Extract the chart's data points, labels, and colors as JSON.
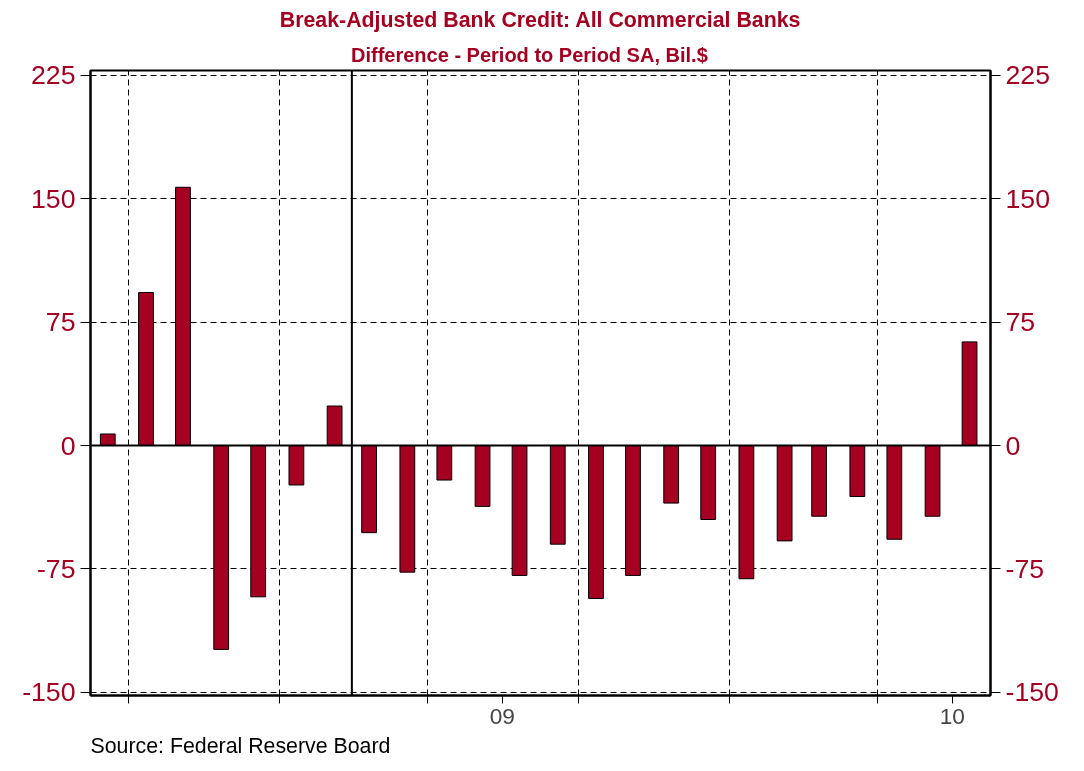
{
  "chart_data": {
    "type": "bar",
    "title": "Break-Adjusted Bank Credit: All Commercial Banks",
    "subtitle": "Difference - Period to Period     SA, Bil.$",
    "x": [
      "2008-08-15",
      "2008-09-15",
      "2008-10-15",
      "2008-11-15",
      "2008-12-15",
      "2009-01-15",
      "2009-02-15",
      "2009-03-15",
      "2009-04-15",
      "2009-05-15",
      "2009-06-15",
      "2009-07-15",
      "2009-08-15",
      "2009-09-15",
      "2009-10-15",
      "2009-11-15",
      "2009-12-15",
      "2010-01-15",
      "2010-02-15",
      "2010-03-15",
      "2010-04-15",
      "2010-05-15",
      "2010-06-15",
      "2010-07-15"
    ],
    "series": [
      {
        "color": "#a50021",
        "values": [
          7,
          93,
          157,
          -124,
          -92,
          -24,
          24,
          -53,
          -77,
          -21,
          -37,
          -79,
          -60,
          -93,
          -79,
          -35,
          -45,
          -81,
          -58,
          -43,
          -31,
          -57,
          -43,
          63
        ]
      }
    ],
    "xlim": [
      "2008-08-01",
      "2010-08-01"
    ],
    "xticks": [
      {
        "value": "2008-09-01",
        "label": null
      },
      {
        "value": "2009-01-01",
        "label": null
      },
      {
        "value": "2009-05-01",
        "label": null
      },
      {
        "value": "2009-07-01",
        "label": "09"
      },
      {
        "value": "2009-09-01",
        "label": null
      },
      {
        "value": "2010-01-01",
        "label": null
      },
      {
        "value": "2010-05-01",
        "label": null
      },
      {
        "value": "2010-07-01",
        "label": "10"
      }
    ],
    "ylim": [
      -152,
      228
    ],
    "yticks": [
      -150,
      -75,
      0,
      75,
      150,
      225
    ],
    "y2lim": [
      -152,
      228
    ],
    "y2ticks": [
      -150,
      -75,
      0,
      75,
      150,
      225
    ],
    "ref_lines": [
      {
        "axis": "x",
        "value": "2009-03-01",
        "color": "#000000",
        "line_style": "solid"
      },
      {
        "axis": "y",
        "value": 0,
        "color": "#000000",
        "line_style": "solid"
      }
    ],
    "grid": true,
    "annotations": [
      "Source:  Federal Reserve Board"
    ]
  }
}
